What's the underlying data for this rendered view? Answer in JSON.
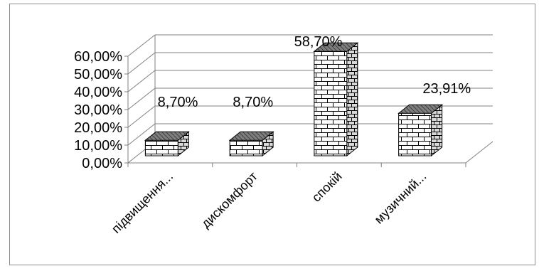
{
  "chart_data": {
    "type": "bar",
    "variant": "3d-column",
    "categories": [
      "підвищення...",
      "дискомфорт",
      "спокій",
      "музичний..."
    ],
    "series": [
      {
        "values": [
          8.7,
          8.7,
          58.7,
          23.91
        ]
      }
    ],
    "data_labels": [
      "8,70%",
      "8,70%",
      "58,70%",
      "23,91%"
    ],
    "y_ticks": [
      "0,00%",
      "10,00%",
      "20,00%",
      "30,00%",
      "40,00%",
      "50,00%",
      "60,00%"
    ],
    "ylim": [
      0,
      60
    ],
    "grid": true,
    "legend": "none",
    "bar_fill": "brick pattern",
    "colors": {
      "bar_face": "#ffffff",
      "brick_line": "#000000",
      "grid": "#808080",
      "top_face": "#7f7f7f"
    },
    "title": "",
    "xlabel": "",
    "ylabel": ""
  }
}
